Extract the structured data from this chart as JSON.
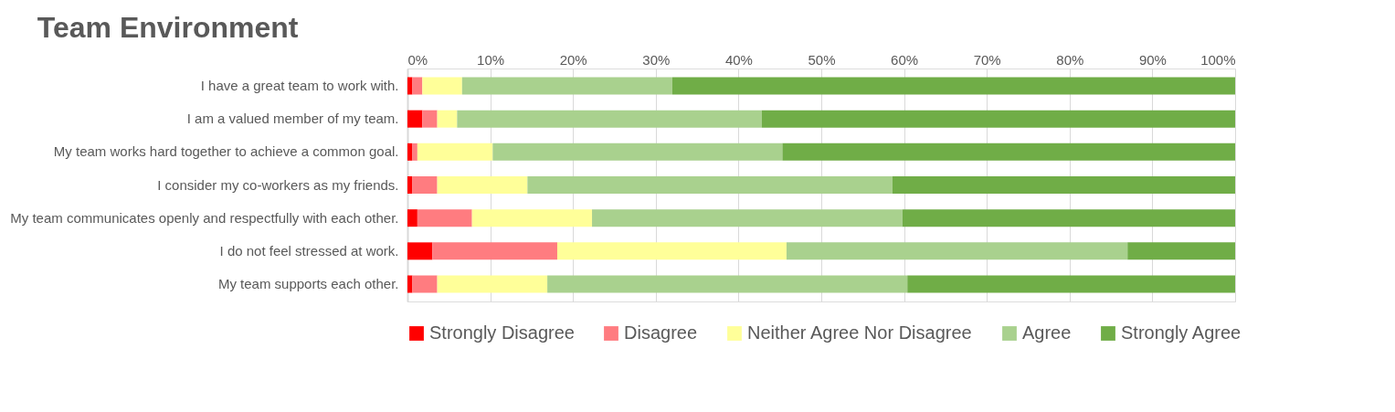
{
  "chart_data": {
    "type": "bar",
    "title": "Team Environment",
    "orientation": "horizontal",
    "stacked": true,
    "categories": [
      "I have a great team to work with.",
      "I am a valued member of my team.",
      "My team works hard together to achieve a common goal.",
      "I consider my co-workers as my friends.",
      "My team communicates openly and respectfully with each other.",
      "I do not feel stressed at work.",
      "My team supports each other."
    ],
    "series": [
      {
        "name": "Strongly Disagree",
        "color": "#ff0000",
        "values": [
          0.6,
          1.8,
          0.6,
          0.6,
          1.2,
          3.0,
          0.6
        ]
      },
      {
        "name": "Disagree",
        "color": "#ff7c80",
        "values": [
          1.2,
          1.8,
          0.6,
          3.0,
          6.6,
          15.1,
          3.0
        ]
      },
      {
        "name": "Neither Agree Nor Disagree",
        "color": "#ffff99",
        "values": [
          4.8,
          2.4,
          9.1,
          10.9,
          14.5,
          27.7,
          13.3
        ]
      },
      {
        "name": "Agree",
        "color": "#a9d18e",
        "values": [
          25.4,
          36.8,
          35.0,
          44.1,
          37.5,
          41.2,
          43.5
        ]
      },
      {
        "name": "Strongly Agree",
        "color": "#70ad47",
        "values": [
          68.0,
          57.2,
          54.7,
          41.4,
          40.2,
          13.0,
          39.6
        ]
      }
    ],
    "xlim": [
      0,
      100
    ],
    "xticks": [
      {
        "value": 0,
        "label": "0%"
      },
      {
        "value": 10,
        "label": "10%"
      },
      {
        "value": 20,
        "label": "20%"
      },
      {
        "value": 30,
        "label": "30%"
      },
      {
        "value": 40,
        "label": "40%"
      },
      {
        "value": 50,
        "label": "50%"
      },
      {
        "value": 60,
        "label": "60%"
      },
      {
        "value": 70,
        "label": "70%"
      },
      {
        "value": 80,
        "label": "80%"
      },
      {
        "value": 90,
        "label": "90%"
      },
      {
        "value": 100,
        "label": "100%"
      }
    ],
    "grid": "x",
    "legend": "bottom"
  }
}
